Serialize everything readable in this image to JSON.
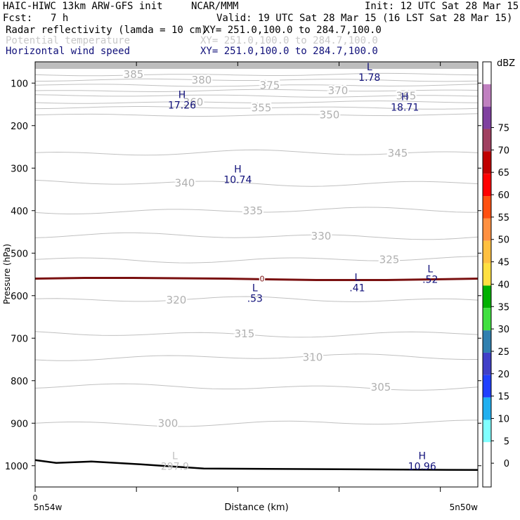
{
  "header": {
    "model": "HAIC-HIWC 13km ARW-GFS init",
    "org": "NCAR/MMM",
    "init": "Init: 12 UTC Sat 28 Mar 15",
    "fcst_label": "Fcst:",
    "fcst_value": "7 h",
    "valid": "Valid: 19 UTC Sat 28 Mar 15 (16 LST Sat 28 Mar 15)",
    "fields": [
      {
        "name": "Radar reflectivity (lamda = 10 cm)",
        "xy": "XY= 251.0,100.0 to 284.7,100.0",
        "color": "#000000"
      },
      {
        "name": "Potential temperature",
        "xy": "XY= 251.0,100.0 to 284.7,100.0",
        "color": "#c8c8c8"
      },
      {
        "name": "Horizontal wind speed",
        "xy": "XY= 251.0,100.0 to 284.7,100.0",
        "color": "#10107a"
      }
    ]
  },
  "chart_data": {
    "type": "cross-section",
    "ylabel": "Pressure (hPa)",
    "xlabel": "Distance (km)",
    "y_axis": {
      "ticks": [
        100,
        200,
        300,
        400,
        500,
        600,
        700,
        800,
        900,
        1000
      ],
      "range": [
        50,
        1050
      ],
      "inverted": true
    },
    "x_axis": {
      "tick_values": [
        0,
        100,
        200,
        300,
        400
      ],
      "first_label": "0",
      "left_label": "5n54w",
      "right_label": "5n50w",
      "range": [
        0,
        437
      ]
    },
    "theta_contours": [
      {
        "label": "385",
        "pressure": 80
      },
      {
        "label": "380",
        "pressure": 93
      },
      {
        "label": "375",
        "pressure": 105
      },
      {
        "label": "370",
        "pressure": 118
      },
      {
        "label": "365",
        "pressure": 130
      },
      {
        "label": "360",
        "pressure": 145
      },
      {
        "label": "355",
        "pressure": 158
      },
      {
        "label": "350",
        "pressure": 175
      },
      {
        "label": "345",
        "pressure": 265
      },
      {
        "label": "340",
        "pressure": 335
      },
      {
        "label": "335",
        "pressure": 400
      },
      {
        "label": "330",
        "pressure": 460
      },
      {
        "label": "325",
        "pressure": 515
      },
      {
        "label": "320",
        "pressure": 610
      },
      {
        "label": "315",
        "pressure": 690
      },
      {
        "label": "310",
        "pressure": 745
      },
      {
        "label": "305",
        "pressure": 815
      },
      {
        "label": "300",
        "pressure": 900
      }
    ],
    "extrema": [
      {
        "type": "L",
        "value": "1.78",
        "field": "wind",
        "x_km": 330,
        "pressure": 70
      },
      {
        "type": "H",
        "value": "17.26",
        "field": "wind",
        "x_km": 145,
        "pressure": 135
      },
      {
        "type": "H",
        "value": "18.71",
        "field": "wind",
        "x_km": 365,
        "pressure": 140
      },
      {
        "type": "H",
        "value": "10.74",
        "field": "wind",
        "x_km": 200,
        "pressure": 310
      },
      {
        "type": "L",
        "value": ".53",
        "field": "wind",
        "x_km": 217,
        "pressure": 590
      },
      {
        "type": "L",
        "value": ".41",
        "field": "wind",
        "x_km": 318,
        "pressure": 565
      },
      {
        "type": "L",
        "value": ".52",
        "field": "wind",
        "x_km": 390,
        "pressure": 545
      },
      {
        "type": "H",
        "value": "10.96",
        "field": "wind",
        "x_km": 382,
        "pressure": 985
      },
      {
        "type": "L",
        "value": "297.9",
        "field": "theta",
        "x_km": 138,
        "pressure": 985
      }
    ],
    "reflectivity_zero_contour": {
      "label": "0",
      "pressure": 560
    },
    "terrain_pressure": 1010,
    "colorbar": {
      "unit": "dBZ",
      "levels": [
        "-",
        "0",
        "5",
        "10",
        "15",
        "20",
        "25",
        "30",
        "35",
        "40",
        "45",
        "50",
        "55",
        "60",
        "65",
        "70",
        "75"
      ],
      "colors": [
        "#ffffff",
        "#ffffff",
        "#80ffff",
        "#20b0f0",
        "#2040ff",
        "#4040c8",
        "#3080b0",
        "#40e040",
        "#00b000",
        "#ffe040",
        "#ffc040",
        "#ff9040",
        "#ff5010",
        "#ff0000",
        "#c00000",
        "#a04060",
        "#8040a0",
        "#c080c0",
        "#ffffff"
      ]
    }
  }
}
